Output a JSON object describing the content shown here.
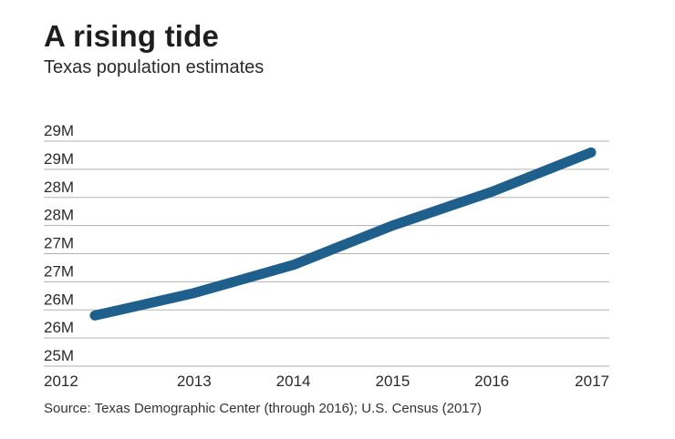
{
  "chart_data": {
    "type": "line",
    "title": "A rising tide",
    "subtitle": "Texas population estimates",
    "source": "Source: Texas Demographic Center (through 2016); U.S. Census (2017)",
    "xlabel": "",
    "ylabel": "",
    "x": [
      "2012",
      "2013",
      "2014",
      "2015",
      "2016",
      "2017"
    ],
    "series": [
      {
        "name": "Texas population",
        "values": [
          25.9,
          26.3,
          26.8,
          27.5,
          28.1,
          28.8
        ]
      }
    ],
    "ylim": [
      25.0,
      29.0
    ],
    "yticks": [
      25.0,
      25.5,
      26.0,
      26.5,
      27.0,
      27.5,
      28.0,
      28.5,
      29.0
    ],
    "ytick_labels": [
      "25M",
      "26M",
      "26M",
      "27M",
      "27M",
      "28M",
      "28M",
      "29M",
      "29M"
    ],
    "grid": true,
    "line_color": "#1f5f8b",
    "grid_color": "#b3b3b3"
  }
}
